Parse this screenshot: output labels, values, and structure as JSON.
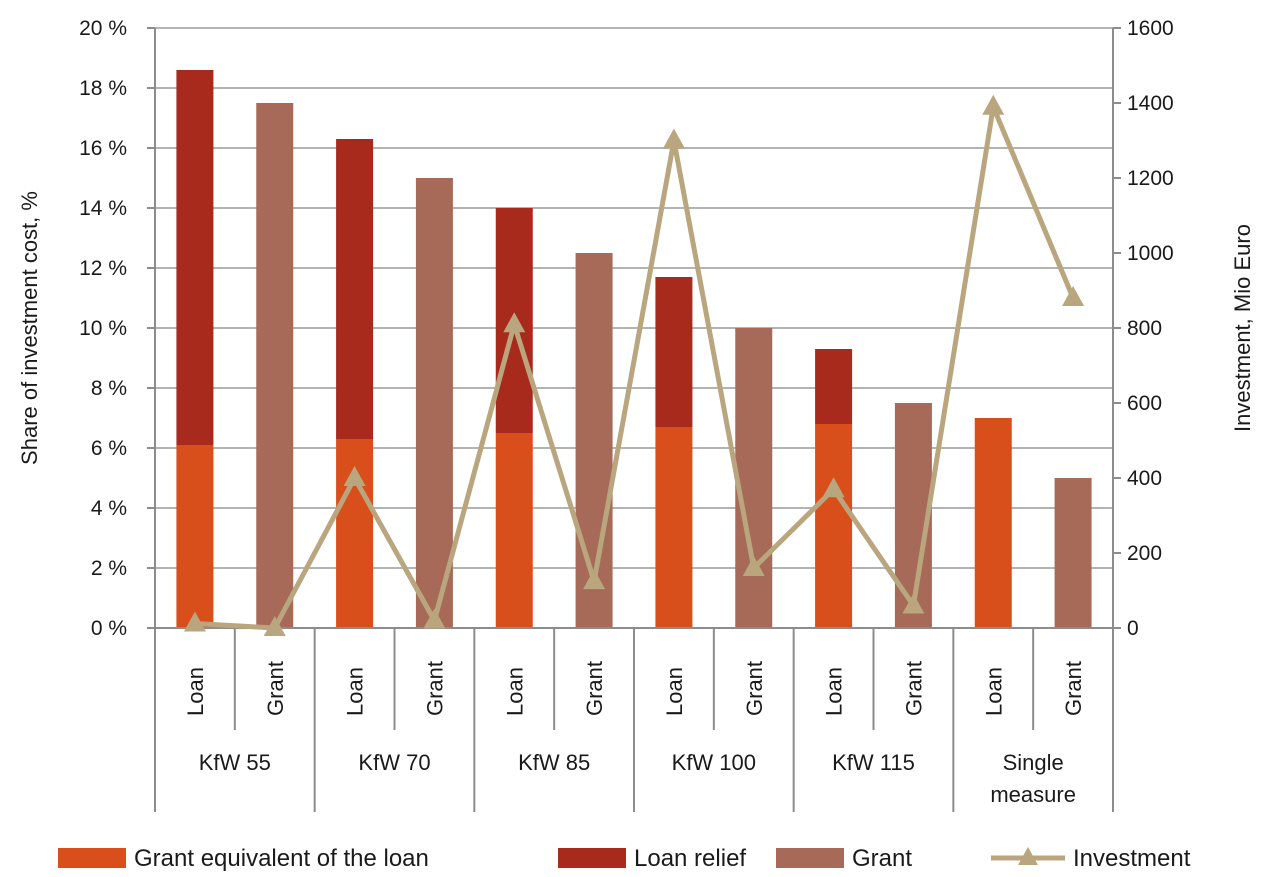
{
  "chart_data": {
    "type": "bar",
    "subtype": "stacked-bar-with-line-secondary-axis",
    "ylabel": "Share of investment cost, %",
    "y2label": "Investment, Mio Euro",
    "ylim": [
      0,
      20
    ],
    "y2lim": [
      0,
      1600
    ],
    "yticks": [
      "0 %",
      "2 %",
      "4 %",
      "6 %",
      "8 %",
      "10 %",
      "12 %",
      "14 %",
      "16 %",
      "18 %",
      "20 %"
    ],
    "y2ticks": [
      "0",
      "200",
      "400",
      "600",
      "800",
      "1000",
      "1200",
      "1400",
      "1600"
    ],
    "grid": true,
    "legend_position": "bottom",
    "groups": [
      {
        "name": "KfW 55",
        "lines": [
          "KfW 55"
        ],
        "categories": [
          "Loan",
          "Grant"
        ]
      },
      {
        "name": "KfW 70",
        "lines": [
          "KfW 70"
        ],
        "categories": [
          "Loan",
          "Grant"
        ]
      },
      {
        "name": "KfW 85",
        "lines": [
          "KfW 85"
        ],
        "categories": [
          "Loan",
          "Grant"
        ]
      },
      {
        "name": "KfW 100",
        "lines": [
          "KfW 100"
        ],
        "categories": [
          "Loan",
          "Grant"
        ]
      },
      {
        "name": "KfW 115",
        "lines": [
          "KfW 115"
        ],
        "categories": [
          "Loan",
          "Grant"
        ]
      },
      {
        "name": "Single measure",
        "lines": [
          "Single",
          "measure"
        ],
        "categories": [
          "Loan",
          "Grant"
        ]
      }
    ],
    "series": [
      {
        "name": "Grant equivalent of the loan",
        "kind": "bar",
        "axis": "left",
        "color": "#d94f1c",
        "values": [
          6.1,
          0,
          6.3,
          0,
          6.5,
          0,
          6.7,
          0,
          6.8,
          0,
          7.0,
          0
        ]
      },
      {
        "name": "Loan relief",
        "kind": "bar",
        "axis": "left",
        "color": "#a82a1d",
        "values": [
          12.5,
          0,
          10.0,
          0,
          7.5,
          0,
          5.0,
          0,
          2.5,
          0,
          0,
          0
        ]
      },
      {
        "name": "Grant",
        "kind": "bar",
        "axis": "left",
        "color": "#a86a58",
        "values": [
          0,
          17.5,
          0,
          15.0,
          0,
          12.5,
          0,
          10.0,
          0,
          7.5,
          0,
          5.0
        ]
      },
      {
        "name": "Investment",
        "kind": "line",
        "axis": "right",
        "color": "#b9a67e",
        "values": [
          12,
          0,
          400,
          20,
          810,
          125,
          1300,
          160,
          370,
          60,
          1390,
          880
        ]
      }
    ]
  }
}
